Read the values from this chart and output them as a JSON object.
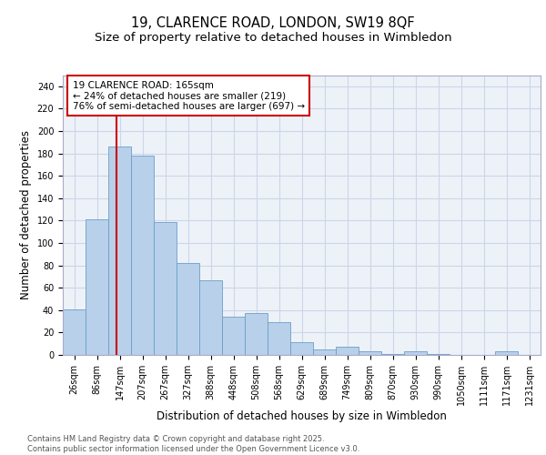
{
  "title_line1": "19, CLARENCE ROAD, LONDON, SW19 8QF",
  "title_line2": "Size of property relative to detached houses in Wimbledon",
  "xlabel": "Distribution of detached houses by size in Wimbledon",
  "ylabel": "Number of detached properties",
  "categories": [
    "26sqm",
    "86sqm",
    "147sqm",
    "207sqm",
    "267sqm",
    "327sqm",
    "388sqm",
    "448sqm",
    "508sqm",
    "568sqm",
    "629sqm",
    "689sqm",
    "749sqm",
    "809sqm",
    "870sqm",
    "930sqm",
    "990sqm",
    "1050sqm",
    "1111sqm",
    "1171sqm",
    "1231sqm"
  ],
  "values": [
    41,
    121,
    186,
    178,
    119,
    82,
    67,
    34,
    37,
    29,
    11,
    5,
    7,
    3,
    1,
    3,
    1,
    0,
    0,
    3,
    0
  ],
  "bar_color": "#b8d0ea",
  "bar_edge_color": "#6a9fc8",
  "bar_width": 1.0,
  "vline_x": 1.85,
  "vline_color": "#cc0000",
  "annotation_text": "19 CLARENCE ROAD: 165sqm\n← 24% of detached houses are smaller (219)\n76% of semi-detached houses are larger (697) →",
  "annotation_box_color": "#cc0000",
  "ylim": [
    0,
    250
  ],
  "yticks": [
    0,
    20,
    40,
    60,
    80,
    100,
    120,
    140,
    160,
    180,
    200,
    220,
    240
  ],
  "grid_color": "#ccd5e8",
  "bg_color": "#edf2f8",
  "footer": "Contains HM Land Registry data © Crown copyright and database right 2025.\nContains public sector information licensed under the Open Government Licence v3.0.",
  "title_fontsize": 10.5,
  "subtitle_fontsize": 9.5,
  "tick_fontsize": 7,
  "label_fontsize": 8.5,
  "ann_fontsize": 7.5,
  "footer_fontsize": 6
}
